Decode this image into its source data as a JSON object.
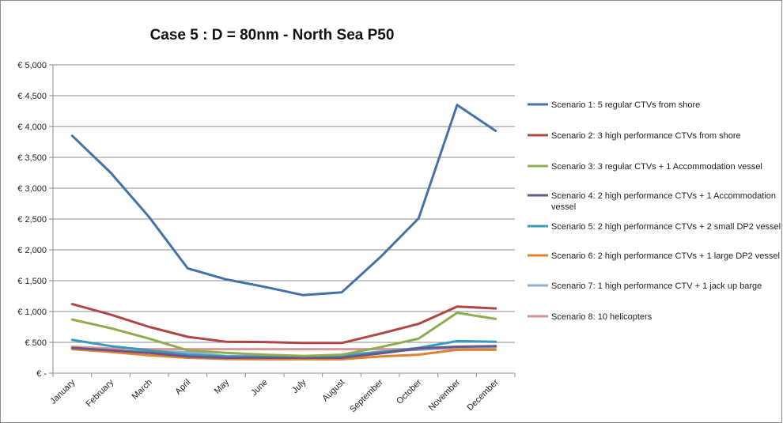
{
  "chart_data": {
    "type": "line",
    "title": "Case 5 : D = 80nm - North Sea P50",
    "xlabel": "",
    "ylabel": "",
    "ylim": [
      0,
      5000
    ],
    "yticks": [
      0,
      500,
      1000,
      1500,
      2000,
      2500,
      3000,
      3500,
      4000,
      4500,
      5000
    ],
    "ytick_labels": [
      "€ -",
      "€ 500",
      "€ 1,000",
      "€ 1,500",
      "€ 2,000",
      "€ 2,500",
      "€ 3,000",
      "€ 3,500",
      "€ 4,000",
      "€ 4,500",
      "€ 5,000"
    ],
    "grid": "horizontal",
    "legend_position": "right",
    "categories": [
      "January",
      "February",
      "March",
      "April",
      "May",
      "June",
      "July",
      "August",
      "September",
      "October",
      "November",
      "December"
    ],
    "series": [
      {
        "name": "Scenario 1: 5 regular CTVs from shore",
        "color": "#4472a8",
        "values": [
          3850,
          3250,
          2530,
          1700,
          1520,
          1400,
          1265,
          1310,
          1880,
          2510,
          4350,
          3930
        ]
      },
      {
        "name": "Scenario 2: 3 high performance CTVs from shore",
        "color": "#b04641",
        "values": [
          1120,
          950,
          750,
          590,
          510,
          505,
          490,
          490,
          640,
          800,
          1080,
          1050
        ]
      },
      {
        "name": "Scenario 3: 3 regular CTVs + 1 Accommodation vessel",
        "color": "#8cad50",
        "values": [
          870,
          730,
          560,
          370,
          330,
          300,
          280,
          300,
          420,
          560,
          980,
          880
        ]
      },
      {
        "name": "Scenario 4: 2 high performance CTVs + 1 Accommodation vessel",
        "color": "#6a558c",
        "values": [
          410,
          370,
          330,
          270,
          250,
          250,
          250,
          250,
          320,
          400,
          430,
          440
        ]
      },
      {
        "name": "Scenario 5: 2 high performance CTVs + 2 small DP2 vessel",
        "color": "#3b99b5",
        "values": [
          540,
          440,
          370,
          300,
          270,
          265,
          260,
          280,
          340,
          410,
          520,
          510
        ]
      },
      {
        "name": "Scenario 6: 2 high performance CTVs + 1 large DP2 vessel",
        "color": "#e0832e",
        "values": [
          390,
          345,
          290,
          250,
          230,
          225,
          225,
          225,
          270,
          300,
          380,
          380
        ]
      },
      {
        "name": "Scenario 7: 1 high performance CTV + 1 jack up barge",
        "color": "#8eaed6",
        "values": [
          400,
          350,
          360,
          340,
          280,
          280,
          275,
          290,
          350,
          380,
          420,
          420
        ]
      },
      {
        "name": "Scenario 8: 10 helicopters",
        "color": "#d69995",
        "values": [
          430,
          400,
          390,
          390,
          390,
          390,
          390,
          390,
          390,
          390,
          400,
          420
        ]
      }
    ]
  }
}
